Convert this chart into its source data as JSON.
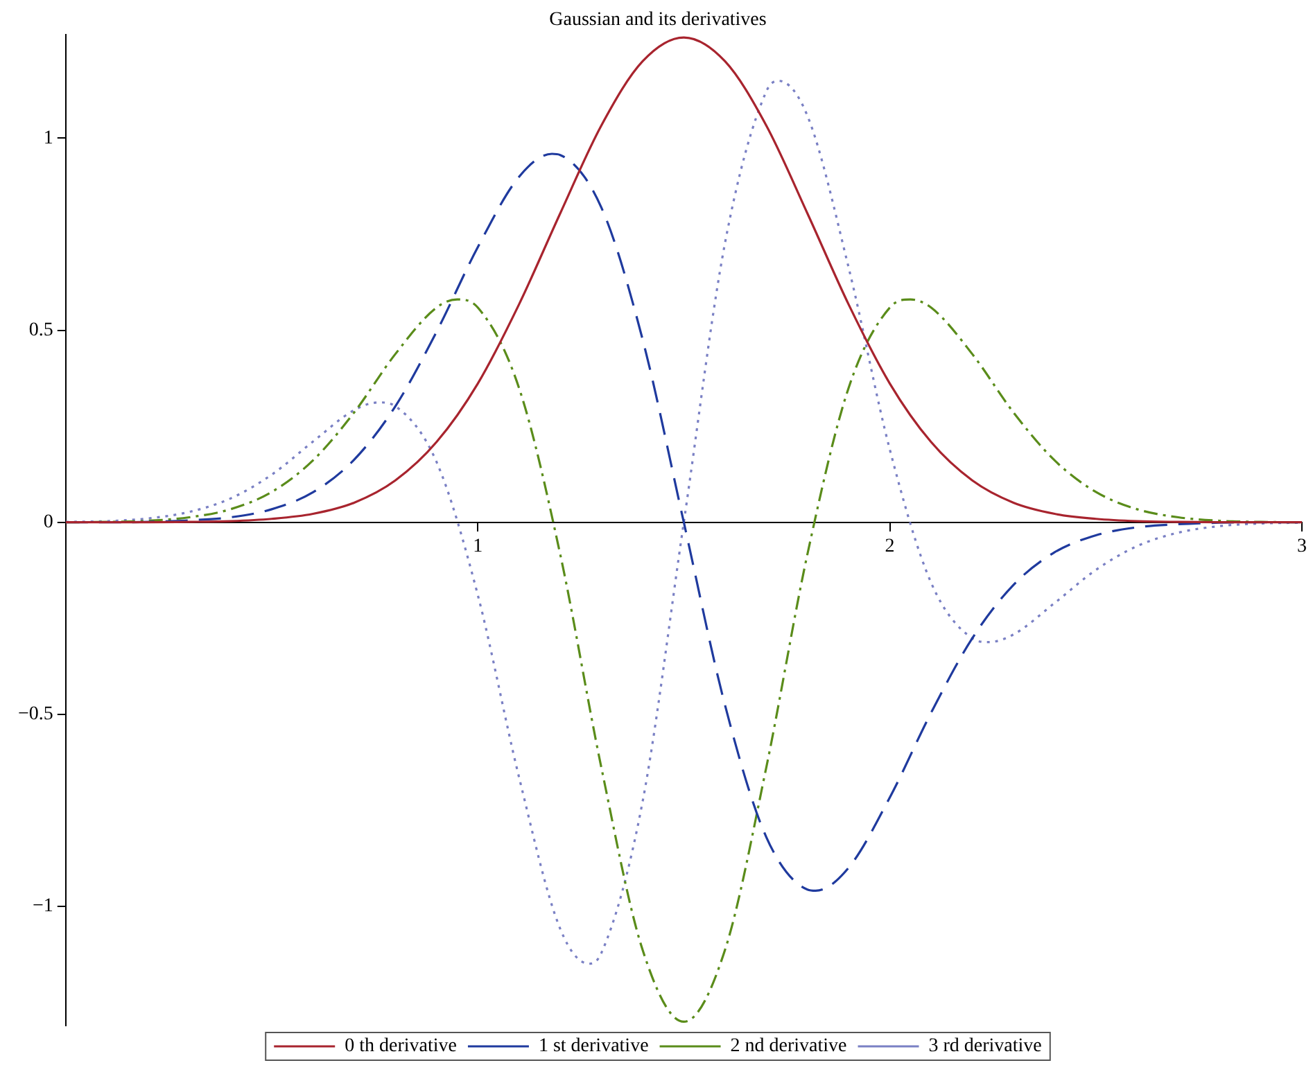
{
  "chart_data": {
    "type": "line",
    "title": "Gaussian and its derivatives",
    "xlim": [
      0,
      3
    ],
    "xticks": [
      1,
      2,
      3
    ],
    "ylim": [
      -1.31,
      1.27
    ],
    "yticks": [
      -1,
      -0.5,
      0,
      0.5,
      1
    ],
    "grid": false,
    "legend": "bottom",
    "marker": "none",
    "series": [
      {
        "name": "0 th derivative",
        "color": "#a8242e",
        "line_style": "solid",
        "x": [
          0,
          0.1,
          0.2,
          0.3,
          0.4,
          0.5,
          0.6,
          0.7,
          0.8,
          0.9,
          1.0,
          1.1,
          1.2,
          1.3,
          1.4,
          1.5,
          1.6,
          1.7,
          1.8,
          1.9,
          2.0,
          2.1,
          2.2,
          2.3,
          2.4,
          2.5,
          2.6,
          2.7,
          2.8,
          2.9,
          3.0
        ],
        "values": [
          0,
          0,
          0,
          0.001,
          0.003,
          0.009,
          0.022,
          0.051,
          0.109,
          0.209,
          0.361,
          0.567,
          0.804,
          1.033,
          1.2,
          1.262,
          1.2,
          1.033,
          0.804,
          0.567,
          0.361,
          0.209,
          0.109,
          0.051,
          0.022,
          0.009,
          0.003,
          0.001,
          0,
          0,
          0
        ]
      },
      {
        "name": "1 st derivative",
        "color": "#1f3a9e",
        "line_style": "dashed",
        "x": [
          0,
          0.1,
          0.2,
          0.3,
          0.4,
          0.5,
          0.6,
          0.7,
          0.8,
          0.9,
          1.0,
          1.1,
          1.18,
          1.2,
          1.3,
          1.4,
          1.5,
          1.6,
          1.7,
          1.8,
          1.82,
          1.9,
          2.0,
          2.1,
          2.2,
          2.3,
          2.4,
          2.5,
          2.6,
          2.7,
          2.8,
          2.9,
          3.0
        ],
        "values": [
          0,
          0,
          0.001,
          0.005,
          0.013,
          0.034,
          0.078,
          0.163,
          0.302,
          0.496,
          0.716,
          0.899,
          0.959,
          0.956,
          0.819,
          0.476,
          0,
          -0.476,
          -0.819,
          -0.956,
          -0.959,
          -0.899,
          -0.716,
          -0.496,
          -0.302,
          -0.163,
          -0.078,
          -0.034,
          -0.013,
          -0.005,
          -0.001,
          0,
          0
        ]
      },
      {
        "name": "2 nd derivative",
        "color": "#5a8c1a",
        "line_style": "dashdot",
        "x": [
          0,
          0.1,
          0.2,
          0.3,
          0.4,
          0.5,
          0.6,
          0.7,
          0.8,
          0.9,
          0.95,
          1.0,
          1.1,
          1.2,
          1.3,
          1.4,
          1.5,
          1.6,
          1.7,
          1.8,
          1.9,
          2.0,
          2.05,
          2.1,
          2.2,
          2.3,
          2.4,
          2.5,
          2.6,
          2.7,
          2.8,
          2.9,
          3.0
        ],
        "values": [
          0,
          0.001,
          0.004,
          0.013,
          0.034,
          0.079,
          0.161,
          0.286,
          0.438,
          0.559,
          0.58,
          0.559,
          0.35,
          -0.083,
          -0.639,
          -1.113,
          -1.3,
          -1.113,
          -0.639,
          -0.083,
          0.35,
          0.559,
          0.58,
          0.559,
          0.438,
          0.286,
          0.161,
          0.079,
          0.034,
          0.013,
          0.004,
          0.001,
          0
        ]
      },
      {
        "name": "3 rd derivative",
        "color": "#7a80c4",
        "line_style": "dotted",
        "x": [
          0,
          0.1,
          0.2,
          0.3,
          0.4,
          0.5,
          0.6,
          0.7,
          0.76,
          0.8,
          0.9,
          1.0,
          1.1,
          1.2,
          1.27,
          1.3,
          1.4,
          1.5,
          1.6,
          1.7,
          1.73,
          1.8,
          1.9,
          2.0,
          2.1,
          2.2,
          2.24,
          2.3,
          2.4,
          2.5,
          2.6,
          2.7,
          2.8,
          2.9,
          3.0
        ],
        "values": [
          0.001,
          0.003,
          0.01,
          0.027,
          0.062,
          0.124,
          0.21,
          0.292,
          0.312,
          0.302,
          0.157,
          -0.189,
          -0.663,
          -1.058,
          -1.149,
          -1.121,
          -0.727,
          0,
          0.727,
          1.121,
          1.149,
          1.058,
          0.663,
          0.189,
          -0.157,
          -0.302,
          -0.312,
          -0.292,
          -0.21,
          -0.124,
          -0.062,
          -0.027,
          -0.01,
          -0.003,
          -0.001
        ]
      }
    ]
  }
}
